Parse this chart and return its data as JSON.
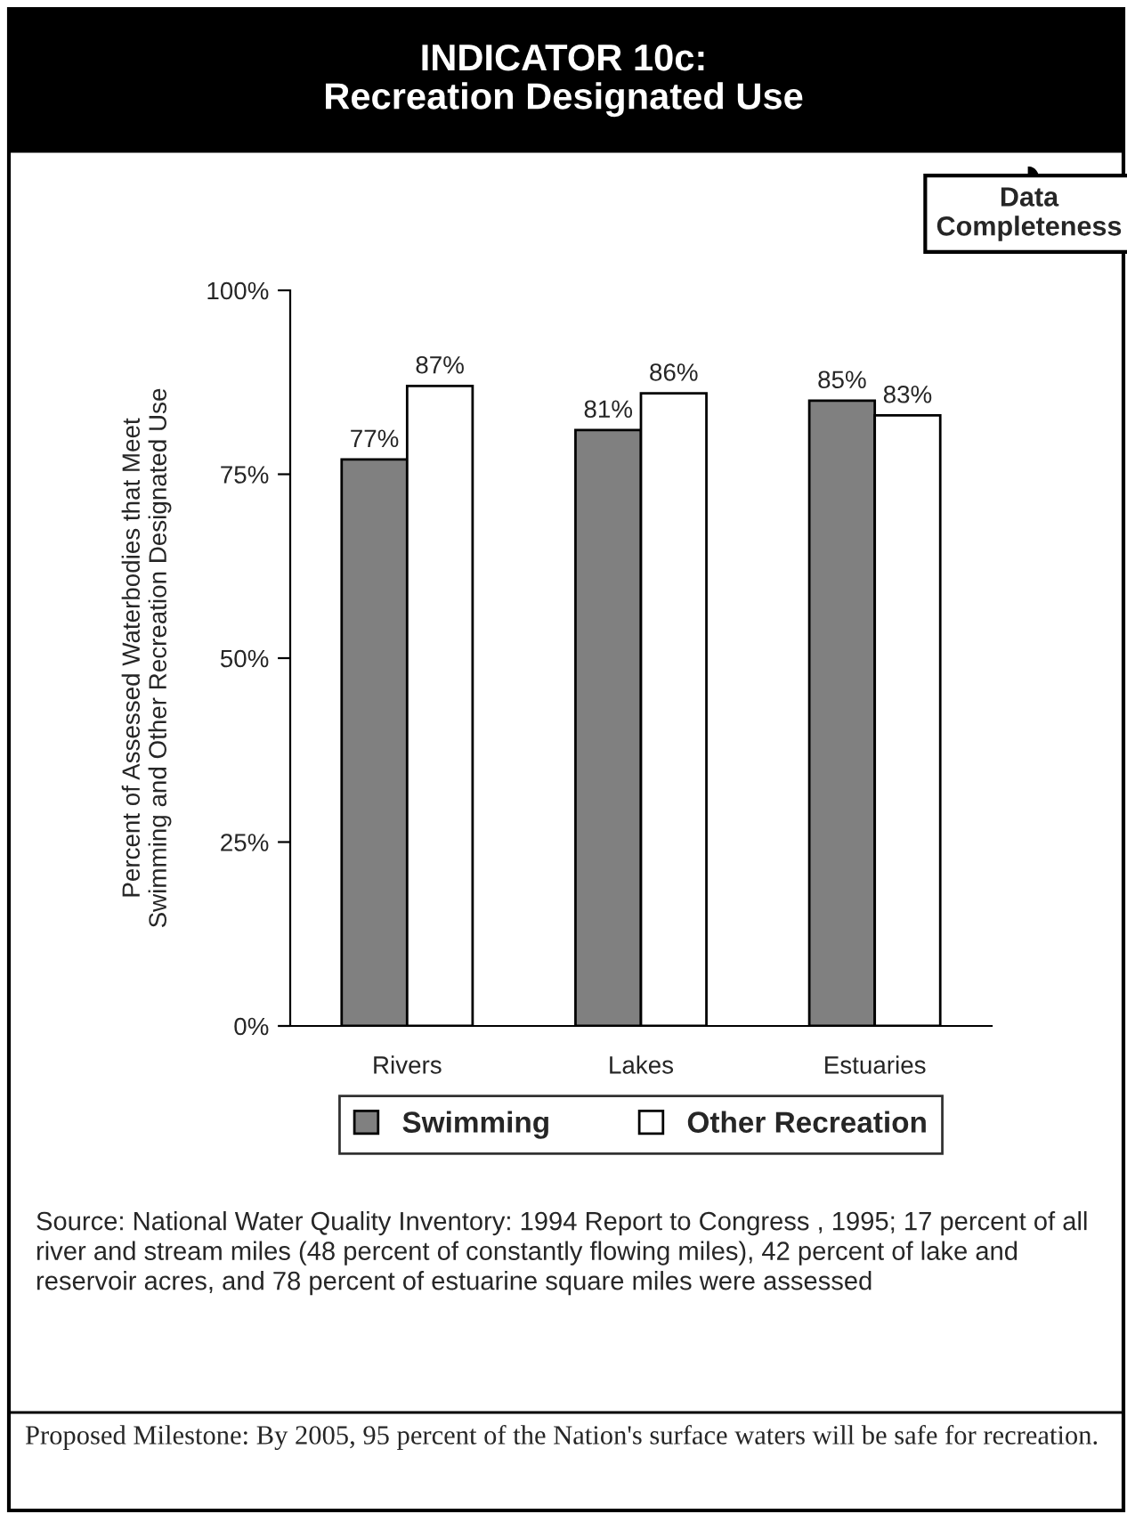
{
  "chart_data": {
    "type": "bar",
    "title": "INDICATOR 10c:\nRecreation Designated Use",
    "ylabel": "Percent of Assessed Waterbodies that Meet\nSwimming and Other Recreation Designated Use",
    "categories": [
      "Rivers",
      "Lakes",
      "Estuaries"
    ],
    "series": [
      {
        "name": "Swimming",
        "color": "#808080",
        "values": [
          77,
          81,
          85
        ],
        "value_labels": [
          "77%",
          "81%",
          "85%"
        ]
      },
      {
        "name": "Other Recreation",
        "color": "#ffffff",
        "values": [
          87,
          86,
          83
        ],
        "value_labels": [
          "87%",
          "86%",
          "83%"
        ]
      }
    ],
    "ylim": [
      0,
      100
    ],
    "yticks": [
      {
        "value": 0,
        "label": "0%"
      },
      {
        "value": 25,
        "label": "25%"
      },
      {
        "value": 50,
        "label": "50%"
      },
      {
        "value": 75,
        "label": "75%"
      },
      {
        "value": 100,
        "label": "100%"
      }
    ],
    "legend": "bottom",
    "grid": false,
    "annotations": [
      "Data\nCompleteness",
      "Source: National Water Quality Inventory: 1994 Report to Congress , 1995; 17 percent of all river and stream miles (48 percent of constantly flowing miles), 42 percent of lake and reservoir acres, and 78 percent of estuarine square miles were assessed",
      "Proposed Milestone: By 2005, 95 percent of the Nation's surface waters will be safe for recreation."
    ]
  }
}
